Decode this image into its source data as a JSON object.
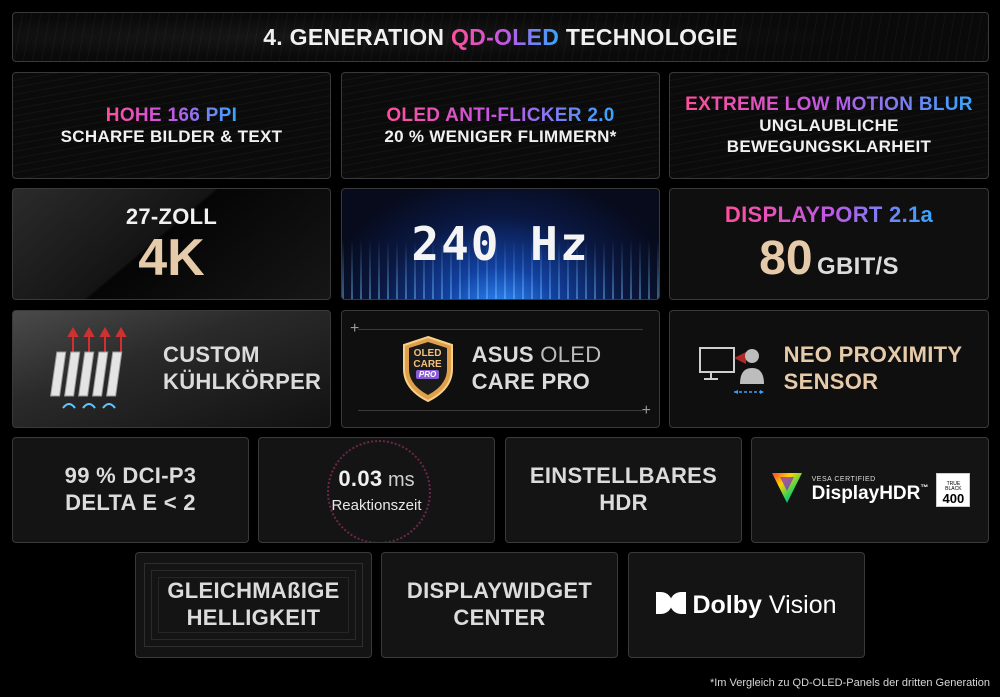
{
  "header": {
    "prefix": "4. GENERATION ",
    "highlight": "QD-OLED",
    "suffix": " TECHNOLOGIE"
  },
  "tiles": {
    "ppi": {
      "line1": "HOHE 166 PPI",
      "line2": "SCHARFE BILDER & TEXT"
    },
    "flicker": {
      "line1": "OLED ANTI-FLICKER 2.0",
      "line2": "20 % WENIGER FLIMMERN*"
    },
    "blur": {
      "line1": "EXTREME LOW MOTION BLUR",
      "line2": "UNGLAUBLICHE",
      "line3": "BEWEGUNGSKLARHEIT"
    },
    "size": {
      "line1": "27-ZOLL",
      "line2": "4K"
    },
    "hz": {
      "value": "240 Hz"
    },
    "dp": {
      "line1": "DISPLAYPORT 2.1a",
      "number": "80",
      "unit": "GBIT/S"
    },
    "cooling": {
      "line1": "CUSTOM",
      "line2": "KÜHLKÖRPER"
    },
    "care": {
      "badge1": "OLED",
      "badge2": "CARE",
      "badge3": "PRO",
      "line1a": "ASUS",
      "line1b": " OLED",
      "line2": "CARE PRO"
    },
    "proximity": {
      "line1": "NEO PROXIMITY",
      "line2": "SENSOR"
    },
    "dci": {
      "line1": "99 % DCI-P3",
      "line2": "DELTA E < 2"
    },
    "response": {
      "value": "0.03",
      "unit": " ms",
      "label": "Reaktionszeit"
    },
    "hdr": {
      "line1": "EINSTELLBARES",
      "line2": "HDR"
    },
    "vesa": {
      "small": "VESA CERTIFIED",
      "brand": "DisplayHDR",
      "tm": "™",
      "tb1": "TRUE",
      "tb2": "BLACK",
      "level": "400"
    },
    "uniform": {
      "line1": "GLEICHMAßIGE",
      "line2": "HELLIGKEIT"
    },
    "widget": {
      "line1": "DISPLAYWIDGET",
      "line2": "CENTER"
    },
    "dolby": {
      "brand": "Dolby",
      "product": "Vision"
    }
  },
  "footnote": "*Im Vergleich zu QD-OLED-Panels der dritten Generation",
  "colors": {
    "gradient_start": "#ff4f9a",
    "gradient_mid": "#c157e6",
    "gradient_end": "#36a6ff",
    "gold": "#e6cbaa",
    "care_badge": "#e0a04a"
  },
  "icons": [
    "heatsink-icon",
    "oled-care-shield-icon",
    "proximity-sensor-icon",
    "displayhdr-logo-icon",
    "dolby-logo-icon"
  ]
}
